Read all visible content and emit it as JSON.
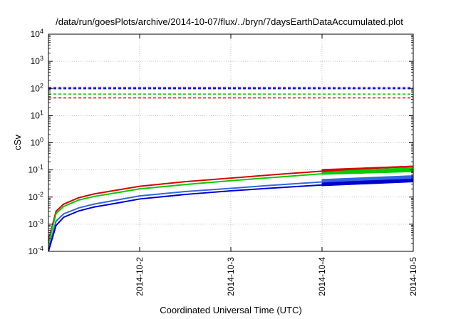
{
  "chart_data": {
    "type": "line",
    "title": "/data/run/goesPlots/archive/2014-10-07/flux/../bryn/7daysEarthDataAccumulated.plot",
    "xlabel": "Coordinated Universal Time (UTC)",
    "ylabel": "cSv",
    "x_scale": "time",
    "y_scale": "log",
    "xlim": [
      "2014-10-01",
      "2014-10-05"
    ],
    "ylim": [
      0.0001,
      10000
    ],
    "x_ticks": [
      "2014-10-2",
      "2014-10-3",
      "2014-10-4",
      "2014-10-5"
    ],
    "y_ticks": [
      {
        "base": "10",
        "exp": "-4"
      },
      {
        "base": "10",
        "exp": "-3"
      },
      {
        "base": "10",
        "exp": "-2"
      },
      {
        "base": "10",
        "exp": "-1"
      },
      {
        "base": "10",
        "exp": "0"
      },
      {
        "base": "10",
        "exp": "1"
      },
      {
        "base": "10",
        "exp": "2"
      },
      {
        "base": "10",
        "exp": "3"
      },
      {
        "base": "10",
        "exp": "4"
      }
    ],
    "grid": true,
    "series": [
      {
        "color": "#dd0000",
        "style": "solid",
        "x": [
          "2014-10-01",
          "2014-10-01T02:00",
          "2014-10-01T04:00",
          "2014-10-01T08:00",
          "2014-10-01T12:00",
          "2014-10-01T18:00",
          "2014-10-02",
          "2014-10-02T12:00",
          "2014-10-03",
          "2014-10-03T12:00",
          "2014-10-04",
          "2014-10-04T12:00",
          "2014-10-05"
        ],
        "y": [
          0.00025,
          0.003,
          0.0055,
          0.0095,
          0.013,
          0.018,
          0.025,
          0.037,
          0.05,
          0.068,
          0.09,
          0.115,
          0.135
        ]
      },
      {
        "color": "#00cc00",
        "style": "solid",
        "x": [
          "2014-10-01",
          "2014-10-01T02:00",
          "2014-10-01T04:00",
          "2014-10-01T08:00",
          "2014-10-01T12:00",
          "2014-10-01T18:00",
          "2014-10-02",
          "2014-10-02T12:00",
          "2014-10-03",
          "2014-10-03T12:00",
          "2014-10-04",
          "2014-10-04T12:00",
          "2014-10-05"
        ],
        "y": [
          0.0002,
          0.0025,
          0.0045,
          0.0078,
          0.0105,
          0.0145,
          0.02,
          0.029,
          0.04,
          0.054,
          0.072,
          0.09,
          0.105
        ]
      },
      {
        "color": "#3366dd",
        "style": "solid",
        "x": [
          "2014-10-01",
          "2014-10-01T02:00",
          "2014-10-01T04:00",
          "2014-10-01T08:00",
          "2014-10-01T12:00",
          "2014-10-01T18:00",
          "2014-10-02",
          "2014-10-02T12:00",
          "2014-10-03",
          "2014-10-03T12:00",
          "2014-10-04",
          "2014-10-04T12:00",
          "2014-10-05"
        ],
        "y": [
          0.00012,
          0.0013,
          0.0024,
          0.004,
          0.0055,
          0.0078,
          0.011,
          0.016,
          0.021,
          0.028,
          0.036,
          0.045,
          0.055
        ]
      },
      {
        "color": "#0000cc",
        "style": "solid",
        "x": [
          "2014-10-01",
          "2014-10-01T02:00",
          "2014-10-01T04:00",
          "2014-10-01T08:00",
          "2014-10-01T12:00",
          "2014-10-01T18:00",
          "2014-10-02",
          "2014-10-02T12:00",
          "2014-10-03",
          "2014-10-03T12:00",
          "2014-10-04",
          "2014-10-04T12:00",
          "2014-10-05"
        ],
        "y": [
          0.0001,
          0.0009,
          0.0018,
          0.0031,
          0.0043,
          0.006,
          0.0085,
          0.0125,
          0.017,
          0.022,
          0.028,
          0.034,
          0.04
        ]
      },
      {
        "color": "#dd0000",
        "style": "dashed",
        "x": [
          "2014-10-01",
          "2014-10-05"
        ],
        "y": [
          45,
          45
        ]
      },
      {
        "color": "#00cc00",
        "style": "dashed",
        "x": [
          "2014-10-01",
          "2014-10-05"
        ],
        "y": [
          62,
          62
        ]
      },
      {
        "color": "#0000cc",
        "style": "dashed",
        "x": [
          "2014-10-01",
          "2014-10-05"
        ],
        "y": [
          98,
          98
        ]
      },
      {
        "color": "#9900cc",
        "style": "dashed",
        "x": [
          "2014-10-01",
          "2014-10-05"
        ],
        "y": [
          110,
          110
        ]
      }
    ],
    "bands": [
      {
        "color": "#dd0000",
        "x": [
          "2014-10-04",
          "2014-10-05"
        ],
        "low": [
          0.095,
          0.128
        ],
        "high": [
          0.105,
          0.14
        ]
      },
      {
        "color": "#00cc00",
        "x": [
          "2014-10-04",
          "2014-10-05"
        ],
        "low": [
          0.068,
          0.085
        ],
        "high": [
          0.09,
          0.12
        ]
      },
      {
        "color": "#3366dd",
        "x": [
          "2014-10-04",
          "2014-10-05"
        ],
        "low": [
          0.034,
          0.048
        ],
        "high": [
          0.045,
          0.062
        ]
      },
      {
        "color": "#0000cc",
        "x": [
          "2014-10-04",
          "2014-10-05"
        ],
        "low": [
          0.026,
          0.036
        ],
        "high": [
          0.034,
          0.046
        ]
      }
    ]
  }
}
